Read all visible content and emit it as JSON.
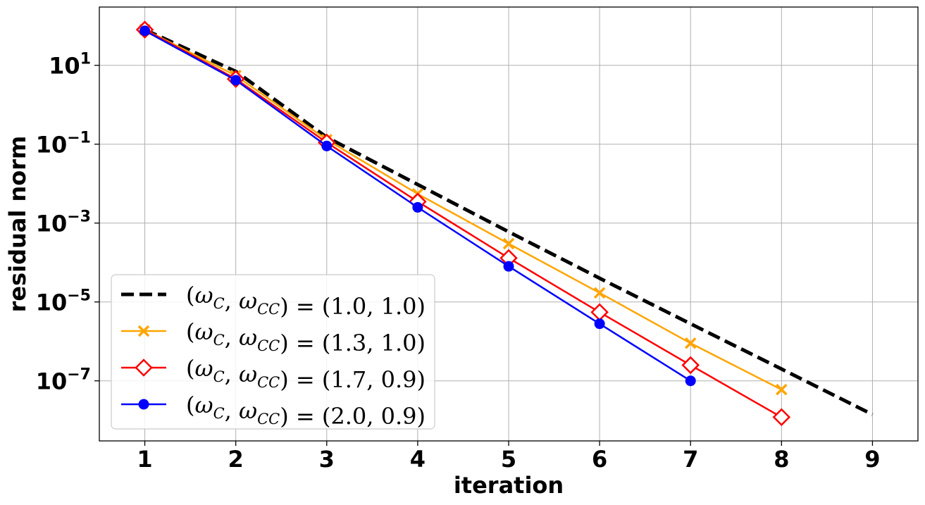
{
  "chart_data": {
    "type": "line",
    "title": "",
    "xlabel": "iteration",
    "ylabel": "residual norm",
    "x_ticks": [
      1,
      2,
      3,
      4,
      5,
      6,
      7,
      8,
      9
    ],
    "xlim": [
      0.5,
      9.5
    ],
    "y_scale": "log",
    "y_ticks": [
      {
        "base": "10",
        "exp": "1",
        "value": 10
      },
      {
        "base": "10",
        "exp": "−1",
        "value": 0.1
      },
      {
        "base": "10",
        "exp": "−3",
        "value": 0.001
      },
      {
        "base": "10",
        "exp": "−5",
        "value": 1e-05
      },
      {
        "base": "10",
        "exp": "−7",
        "value": 1e-07
      }
    ],
    "ylim": [
      3e-09,
      300
    ],
    "grid": true,
    "legend_position": "lower-left",
    "series": [
      {
        "name": "(ωC, ωCC) = (1.0, 1.0)",
        "legend": {
          "w1": "1.0",
          "w2": "1.0"
        },
        "color": "#000000",
        "style": "dashed",
        "marker": "none",
        "x": [
          1,
          2,
          3,
          4,
          5,
          6,
          7,
          8,
          9
        ],
        "y": [
          80,
          7,
          0.15,
          0.0095,
          0.0006,
          4e-05,
          2.8e-06,
          2e-07,
          1.4e-08
        ]
      },
      {
        "name": "(ωC, ωCC) = (1.3, 1.0)",
        "legend": {
          "w1": "1.3",
          "w2": "1.0"
        },
        "color": "#ffa500",
        "style": "solid",
        "marker": "x",
        "x": [
          1,
          2,
          3,
          4,
          5,
          6,
          7,
          8
        ],
        "y": [
          80,
          5.5,
          0.13,
          0.0055,
          0.0003,
          1.7e-05,
          9e-07,
          6e-08
        ]
      },
      {
        "name": "(ωC, ωCC) = (1.7, 0.9)",
        "legend": {
          "w1": "1.7",
          "w2": "0.9"
        },
        "color": "#ff0000",
        "style": "solid",
        "marker": "diamond",
        "x": [
          1,
          2,
          3,
          4,
          5,
          6,
          7,
          8
        ],
        "y": [
          80,
          4.5,
          0.11,
          0.0035,
          0.00013,
          5.5e-06,
          2.5e-07,
          1.2e-08
        ]
      },
      {
        "name": "(ωC, ωCC) = (2.0, 0.9)",
        "legend": {
          "w1": "2.0",
          "w2": "0.9"
        },
        "color": "#0000ff",
        "style": "solid",
        "marker": "circle",
        "x": [
          1,
          2,
          3,
          4,
          5,
          6,
          7
        ],
        "y": [
          75,
          4.2,
          0.09,
          0.0025,
          8e-05,
          2.8e-06,
          1e-07
        ]
      }
    ]
  }
}
